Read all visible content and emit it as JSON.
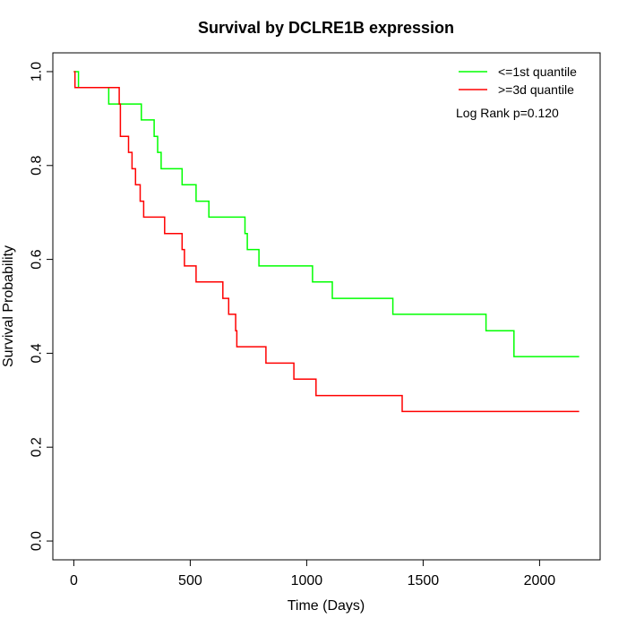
{
  "chart_data": {
    "type": "line",
    "title": "Survival by DCLRE1B expression",
    "xlabel": "Time (Days)",
    "ylabel": "Survival Probability",
    "xlim": [
      -90,
      2260
    ],
    "ylim": [
      -0.04,
      1.04
    ],
    "x_ticks": [
      0,
      500,
      1000,
      1500,
      2000
    ],
    "y_ticks": [
      0.0,
      0.2,
      0.4,
      0.6,
      0.8,
      1.0
    ],
    "x_tick_labels": [
      "0",
      "500",
      "1000",
      "1500",
      "2000"
    ],
    "y_tick_labels": [
      "0.0",
      "0.2",
      "0.4",
      "0.6",
      "0.8",
      "1.0"
    ],
    "grid": false,
    "legend_position": "top-right",
    "annotation": "Log Rank p=0.120",
    "series": [
      {
        "name": "<=1st quantile",
        "color": "#00ff00",
        "points": [
          [
            0,
            1.0
          ],
          [
            20,
            1.0
          ],
          [
            20,
            0.966
          ],
          [
            150,
            0.966
          ],
          [
            150,
            0.931
          ],
          [
            290,
            0.931
          ],
          [
            290,
            0.897
          ],
          [
            345,
            0.897
          ],
          [
            345,
            0.862
          ],
          [
            360,
            0.862
          ],
          [
            360,
            0.828
          ],
          [
            375,
            0.828
          ],
          [
            375,
            0.793
          ],
          [
            465,
            0.793
          ],
          [
            465,
            0.759
          ],
          [
            525,
            0.759
          ],
          [
            525,
            0.724
          ],
          [
            580,
            0.724
          ],
          [
            580,
            0.69
          ],
          [
            735,
            0.69
          ],
          [
            735,
            0.655
          ],
          [
            745,
            0.655
          ],
          [
            745,
            0.621
          ],
          [
            795,
            0.621
          ],
          [
            795,
            0.586
          ],
          [
            1025,
            0.586
          ],
          [
            1025,
            0.552
          ],
          [
            1110,
            0.552
          ],
          [
            1110,
            0.517
          ],
          [
            1370,
            0.517
          ],
          [
            1370,
            0.483
          ],
          [
            1770,
            0.483
          ],
          [
            1770,
            0.448
          ],
          [
            1890,
            0.448
          ],
          [
            1890,
            0.393
          ],
          [
            2170,
            0.393
          ]
        ]
      },
      {
        "name": ">=3d quantile",
        "color": "#ff0000",
        "points": [
          [
            0,
            1.0
          ],
          [
            5,
            1.0
          ],
          [
            5,
            0.966
          ],
          [
            195,
            0.966
          ],
          [
            195,
            0.931
          ],
          [
            200,
            0.931
          ],
          [
            200,
            0.862
          ],
          [
            235,
            0.862
          ],
          [
            235,
            0.828
          ],
          [
            250,
            0.828
          ],
          [
            250,
            0.793
          ],
          [
            265,
            0.793
          ],
          [
            265,
            0.759
          ],
          [
            285,
            0.759
          ],
          [
            285,
            0.724
          ],
          [
            300,
            0.724
          ],
          [
            300,
            0.69
          ],
          [
            390,
            0.69
          ],
          [
            390,
            0.655
          ],
          [
            465,
            0.655
          ],
          [
            465,
            0.621
          ],
          [
            475,
            0.621
          ],
          [
            475,
            0.586
          ],
          [
            525,
            0.586
          ],
          [
            525,
            0.552
          ],
          [
            640,
            0.552
          ],
          [
            640,
            0.517
          ],
          [
            665,
            0.517
          ],
          [
            665,
            0.483
          ],
          [
            695,
            0.483
          ],
          [
            695,
            0.448
          ],
          [
            700,
            0.448
          ],
          [
            700,
            0.414
          ],
          [
            825,
            0.414
          ],
          [
            825,
            0.379
          ],
          [
            945,
            0.379
          ],
          [
            945,
            0.345
          ],
          [
            1040,
            0.345
          ],
          [
            1040,
            0.31
          ],
          [
            1410,
            0.31
          ],
          [
            1410,
            0.276
          ],
          [
            2170,
            0.276
          ]
        ]
      }
    ]
  }
}
